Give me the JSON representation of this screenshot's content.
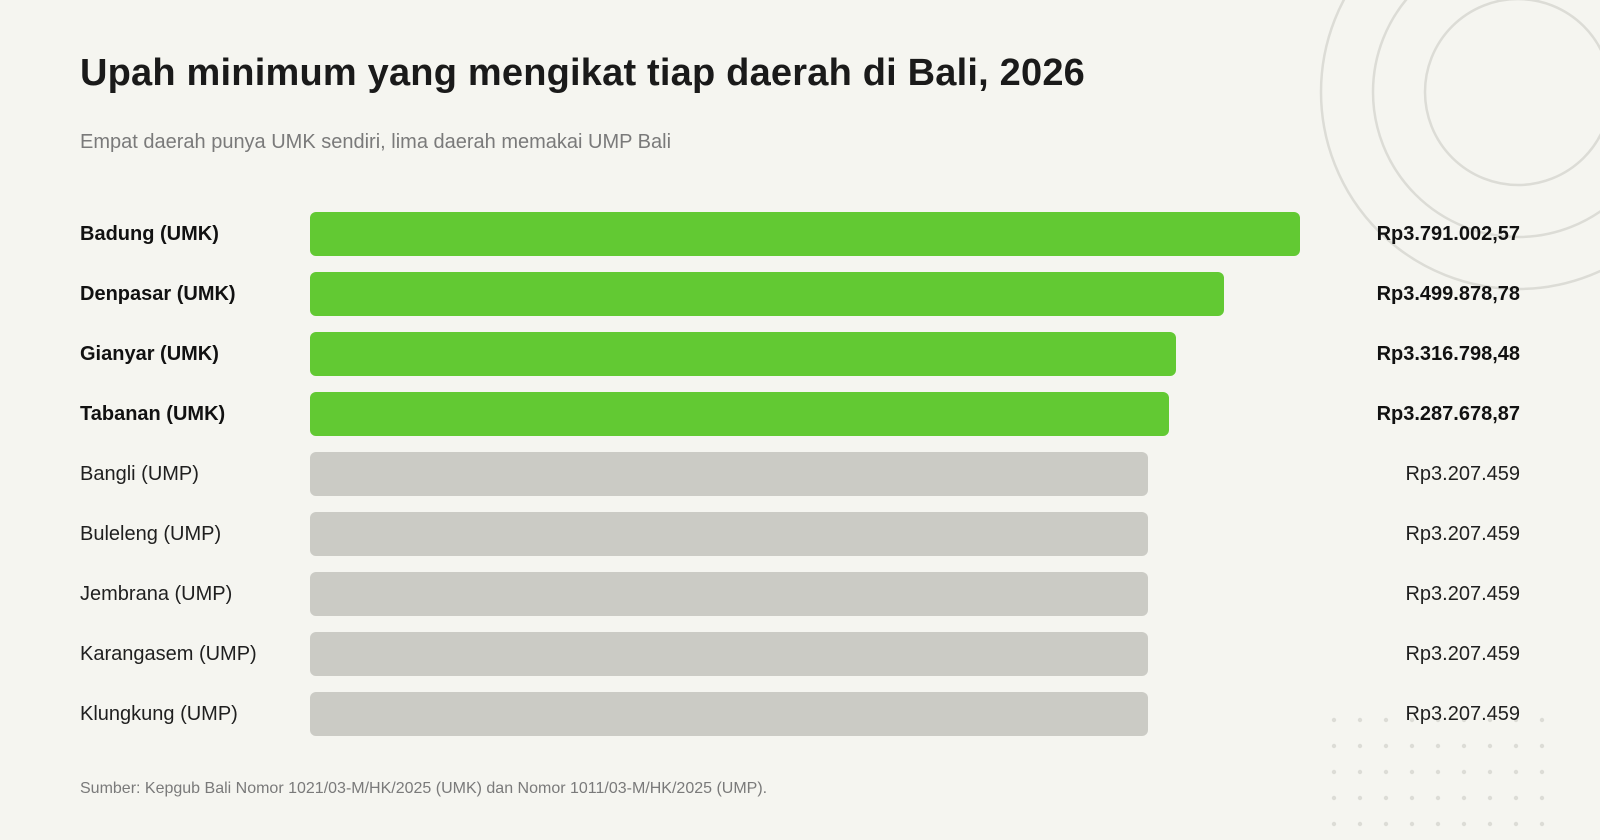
{
  "colors": {
    "background": "#f5f5f0",
    "umk_bar": "#62c933",
    "ump_bar": "#cbcbc5",
    "decoration": "#dcdcd6"
  },
  "header": {
    "title": "Upah minimum yang mengikat tiap daerah di Bali, 2026",
    "subtitle": "Empat daerah punya UMK sendiri, lima daerah memakai UMP Bali"
  },
  "chart_data": {
    "type": "bar",
    "orientation": "horizontal",
    "title": "Upah minimum yang mengikat tiap daerah di Bali, 2026",
    "subtitle": "Empat daerah punya UMK sendiri, lima daerah memakai UMP Bali",
    "xlim": [
      0,
      3791002.57
    ],
    "grid": false,
    "items": [
      {
        "label": "Badung (UMK)",
        "value": 3791002.57,
        "value_label": "Rp3.791.002,57",
        "highlight": true
      },
      {
        "label": "Denpasar (UMK)",
        "value": 3499878.78,
        "value_label": "Rp3.499.878,78",
        "highlight": true
      },
      {
        "label": "Gianyar (UMK)",
        "value": 3316798.48,
        "value_label": "Rp3.316.798,48",
        "highlight": true
      },
      {
        "label": "Tabanan (UMK)",
        "value": 3287678.87,
        "value_label": "Rp3.287.678,87",
        "highlight": true
      },
      {
        "label": "Bangli (UMP)",
        "value": 3207459,
        "value_label": "Rp3.207.459",
        "highlight": false
      },
      {
        "label": "Buleleng (UMP)",
        "value": 3207459,
        "value_label": "Rp3.207.459",
        "highlight": false
      },
      {
        "label": "Jembrana (UMP)",
        "value": 3207459,
        "value_label": "Rp3.207.459",
        "highlight": false
      },
      {
        "label": "Karangasem (UMP)",
        "value": 3207459,
        "value_label": "Rp3.207.459",
        "highlight": false
      },
      {
        "label": "Klungkung (UMP)",
        "value": 3207459,
        "value_label": "Rp3.207.459",
        "highlight": false
      }
    ]
  },
  "footer": {
    "source": "Sumber: Kepgub Bali Nomor 1021/03-M/HK/2025 (UMK) dan Nomor 1011/03-M/HK/2025 (UMP)."
  }
}
